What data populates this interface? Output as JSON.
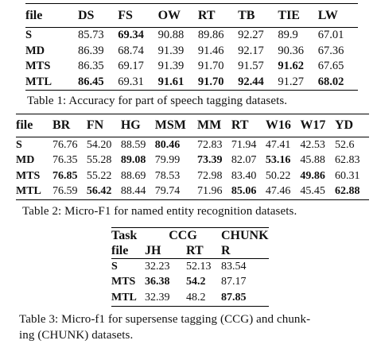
{
  "table1": {
    "headers": [
      "file",
      "DS",
      "FS",
      "OW",
      "RT",
      "TB",
      "TIE",
      "LW"
    ],
    "rows": [
      [
        "S",
        "85.73",
        "69.34",
        "90.88",
        "89.86",
        "92.27",
        "89.9",
        "67.01"
      ],
      [
        "MD",
        "86.39",
        "68.74",
        "91.39",
        "91.46",
        "92.17",
        "90.36",
        "67.36"
      ],
      [
        "MTS",
        "86.35",
        "69.17",
        "91.39",
        "91.70",
        "91.57",
        "91.62",
        "67.65"
      ],
      [
        "MTL",
        "86.45",
        "69.31",
        "91.61",
        "91.70",
        "92.44",
        "91.27",
        "68.02"
      ]
    ],
    "caption": "Table 1: Accuracy for part of speech tagging datasets."
  },
  "table2": {
    "headers": [
      "file",
      "BR",
      "FN",
      "HG",
      "MSM",
      "MM",
      "RT",
      "W16",
      "W17",
      "YD"
    ],
    "rows": [
      [
        "S",
        "76.76",
        "54.20",
        "88.59",
        "80.46",
        "72.83",
        "71.94",
        "47.41",
        "42.53",
        "52.6"
      ],
      [
        "MD",
        "76.35",
        "55.28",
        "89.08",
        "79.99",
        "73.39",
        "82.07",
        "53.16",
        "45.88",
        "62.83"
      ],
      [
        "MTS",
        "76.85",
        "55.22",
        "88.69",
        "78.53",
        "72.98",
        "83.40",
        "50.22",
        "49.86",
        "60.31"
      ],
      [
        "MTL",
        "76.59",
        "56.42",
        "88.44",
        "79.74",
        "71.96",
        "85.06",
        "47.46",
        "45.45",
        "62.88"
      ]
    ],
    "caption": "Table 2: Micro-F1 for named entity recognition datasets."
  },
  "table3": {
    "task_label": "Task",
    "ccg_label": "CCG",
    "chunk_label": "CHUNK",
    "file_label": "file",
    "subheaders": [
      "JH",
      "RT",
      "R"
    ],
    "rows": [
      [
        "S",
        "32.23",
        "52.13",
        "83.54"
      ],
      [
        "MTS",
        "36.38",
        "54.2",
        "87.17"
      ],
      [
        "MTL",
        "32.39",
        "48.2",
        "87.85"
      ]
    ],
    "caption_line1": "Table 3: Micro-f1 for supersense tagging (CCG) and chunk-",
    "caption_line2": "ing (CHUNK) datasets."
  }
}
